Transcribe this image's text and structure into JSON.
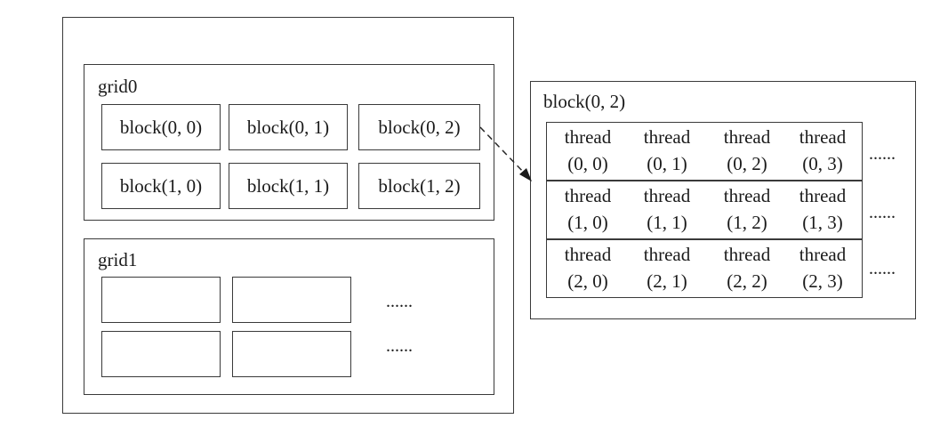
{
  "outer_device": {},
  "grid0": {
    "label": "grid0",
    "blocks": [
      "block(0, 0)",
      "block(0, 1)",
      "block(0, 2)",
      "block(1, 0)",
      "block(1, 1)",
      "block(1, 2)"
    ]
  },
  "grid1": {
    "label": "grid1",
    "ellipsis": [
      "......",
      "......"
    ]
  },
  "block_detail": {
    "label": "block(0, 2)",
    "rows": [
      [
        {
          "word": "thread",
          "coord": "(0, 0)"
        },
        {
          "word": "thread",
          "coord": "(0, 1)"
        },
        {
          "word": "thread",
          "coord": "(0, 2)"
        },
        {
          "word": "thread",
          "coord": "(0, 3)"
        }
      ],
      [
        {
          "word": "thread",
          "coord": "(1, 0)"
        },
        {
          "word": "thread",
          "coord": "(1, 1)"
        },
        {
          "word": "thread",
          "coord": "(1, 2)"
        },
        {
          "word": "thread",
          "coord": "(1, 3)"
        }
      ],
      [
        {
          "word": "thread",
          "coord": "(2, 0)"
        },
        {
          "word": "thread",
          "coord": "(2, 1)"
        },
        {
          "word": "thread",
          "coord": "(2, 2)"
        },
        {
          "word": "thread",
          "coord": "(2, 3)"
        }
      ]
    ],
    "ellipsis": [
      "......",
      "......",
      "......"
    ]
  },
  "connector": {
    "style": "dashed-arrow",
    "from": "block(0, 2)",
    "to": "block(0, 2)"
  }
}
